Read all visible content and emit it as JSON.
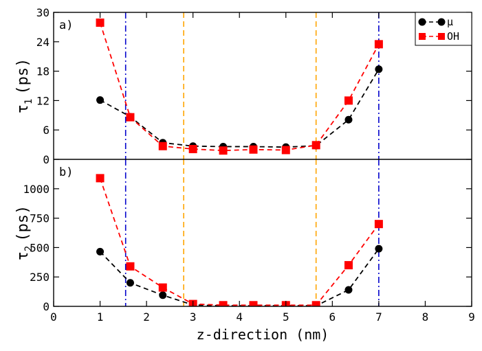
{
  "chart_data": {
    "type": "line",
    "xlabel": "z-direction (nm)",
    "xlim": [
      0,
      9
    ],
    "x_ticks": [
      "0",
      "1",
      "2",
      "3",
      "4",
      "5",
      "6",
      "7",
      "8",
      "9"
    ],
    "grid": false,
    "legend_position": "top-right",
    "legend": [
      "μ",
      "OH"
    ],
    "colors": {
      "mu": "#000000",
      "oh": "#ff0000",
      "outer_lines": "#0000cc",
      "inner_lines": "#ffa500"
    },
    "vertical_lines": {
      "blue_dashdot": [
        1.55,
        7.0
      ],
      "orange_dashed": [
        2.8,
        5.65
      ]
    },
    "panels": [
      {
        "panel_label": "a)",
        "ylabel_symbol": "τ",
        "ylabel_subscript": "1",
        "ylabel_unit": "(ps)",
        "ylim": [
          0,
          30
        ],
        "y_ticks": [
          "0",
          "6",
          "12",
          "18",
          "24",
          "30"
        ],
        "series": [
          {
            "name": "μ",
            "color": "#000000",
            "marker": "circle",
            "x": [
              1.0,
              1.65,
              2.35,
              3.0,
              3.65,
              4.3,
              5.0,
              5.65,
              6.35,
              7.0
            ],
            "y": [
              12.1,
              8.7,
              3.4,
              2.7,
              2.6,
              2.6,
              2.5,
              2.8,
              8.1,
              18.4
            ]
          },
          {
            "name": "OH",
            "color": "#ff0000",
            "marker": "square",
            "x": [
              1.0,
              1.65,
              2.35,
              3.0,
              3.65,
              4.3,
              5.0,
              5.65,
              6.35,
              7.0
            ],
            "y": [
              27.9,
              8.6,
              2.7,
              2.1,
              1.8,
              2.0,
              1.9,
              2.9,
              12.0,
              23.5
            ]
          }
        ]
      },
      {
        "panel_label": "b)",
        "ylabel_symbol": "τ",
        "ylabel_subscript": "2",
        "ylabel_unit": "(ps)",
        "ylim": [
          0,
          1250
        ],
        "y_ticks": [
          "0",
          "250",
          "500",
          "750",
          "1000"
        ],
        "series": [
          {
            "name": "μ",
            "color": "#000000",
            "marker": "circle",
            "x": [
              1.0,
              1.65,
              2.35,
              3.0,
              3.65,
              4.3,
              5.0,
              5.65,
              6.35,
              7.0
            ],
            "y": [
              465,
              200,
              95,
              12,
              5,
              5,
              5,
              5,
              140,
              490
            ]
          },
          {
            "name": "OH",
            "color": "#ff0000",
            "marker": "square",
            "x": [
              1.0,
              1.65,
              2.35,
              3.0,
              3.65,
              4.3,
              5.0,
              5.65,
              6.35,
              7.0
            ],
            "y": [
              1090,
              340,
              160,
              20,
              10,
              10,
              10,
              10,
              350,
              700
            ]
          }
        ]
      }
    ]
  }
}
